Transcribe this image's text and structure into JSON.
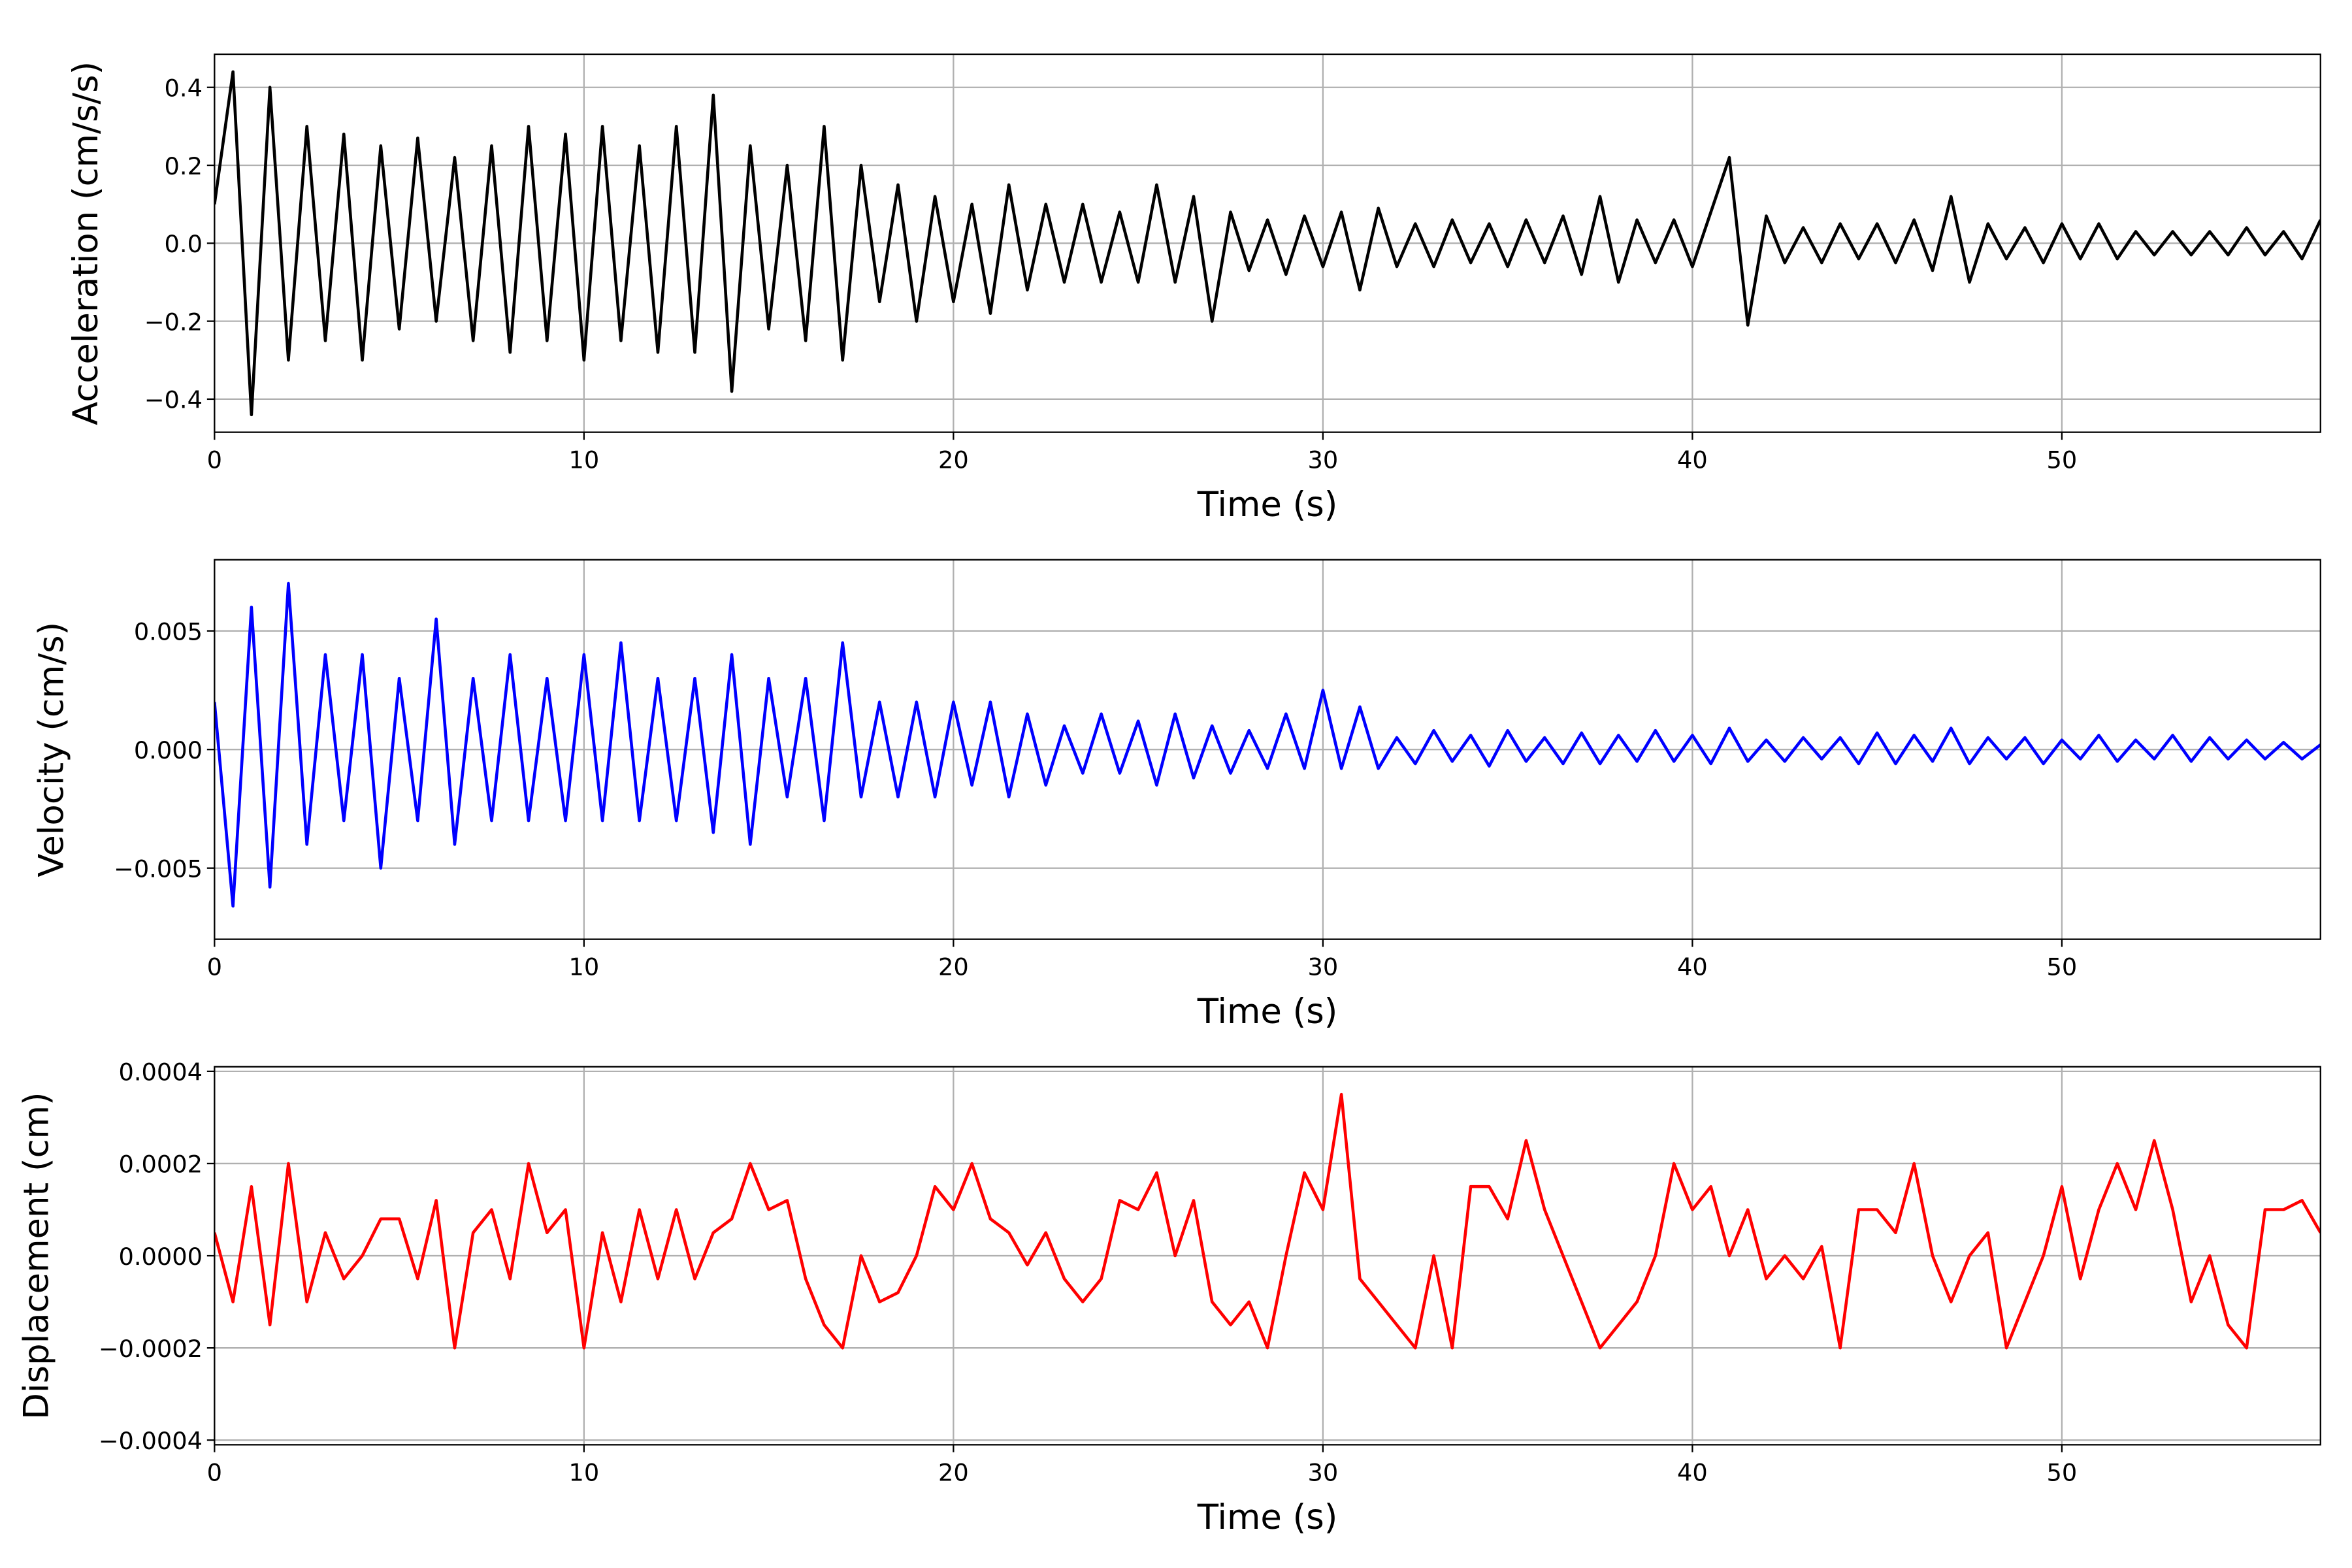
{
  "chart_data": [
    {
      "type": "line",
      "xlabel": "Time (s)",
      "ylabel": "Acceleration (cm/s/s)",
      "color": "#000000",
      "grid": true,
      "xlim": [
        0,
        57
      ],
      "xticks": [
        0,
        10,
        20,
        30,
        40,
        50
      ],
      "ylim": [
        -0.485,
        0.485
      ],
      "yticks": [
        {
          "value": -0.4,
          "label": "−0.4"
        },
        {
          "value": -0.2,
          "label": "−0.2"
        },
        {
          "value": 0,
          "label": "0.0"
        },
        {
          "value": 0.2,
          "label": "0.2"
        },
        {
          "value": 0.4,
          "label": "0.4"
        }
      ],
      "x": [
        0,
        0.5,
        1,
        1.5,
        2,
        2.5,
        3,
        3.5,
        4,
        4.5,
        5,
        5.5,
        6,
        6.5,
        7,
        7.5,
        8,
        8.5,
        9,
        9.5,
        10,
        10.5,
        11,
        11.5,
        12,
        12.5,
        13,
        13.5,
        14,
        14.5,
        15,
        15.5,
        16,
        16.5,
        17,
        17.5,
        18,
        18.5,
        19,
        19.5,
        20,
        20.5,
        21,
        21.5,
        22,
        22.5,
        23,
        23.5,
        24,
        24.5,
        25,
        25.5,
        26,
        26.5,
        27,
        27.5,
        28,
        28.5,
        29,
        29.5,
        30,
        30.5,
        31,
        31.5,
        32,
        32.5,
        33,
        33.5,
        34,
        34.5,
        35,
        35.5,
        36,
        36.5,
        37,
        37.5,
        38,
        38.5,
        39,
        39.5,
        40,
        40.5,
        41,
        41.5,
        42,
        42.5,
        43,
        43.5,
        44,
        44.5,
        45,
        45.5,
        46,
        46.5,
        47,
        47.5,
        48,
        48.5,
        49,
        49.5,
        50,
        50.5,
        51,
        51.5,
        52,
        52.5,
        53,
        53.5,
        54,
        54.5,
        55,
        55.5,
        56,
        56.5,
        57
      ],
      "values": [
        0.1,
        0.44,
        -0.44,
        0.4,
        -0.3,
        0.3,
        -0.25,
        0.28,
        -0.3,
        0.25,
        -0.22,
        0.27,
        -0.2,
        0.22,
        -0.25,
        0.25,
        -0.28,
        0.3,
        -0.25,
        0.28,
        -0.3,
        0.3,
        -0.25,
        0.25,
        -0.28,
        0.3,
        -0.28,
        0.38,
        -0.38,
        0.25,
        -0.22,
        0.2,
        -0.25,
        0.3,
        -0.3,
        0.2,
        -0.15,
        0.15,
        -0.2,
        0.12,
        -0.15,
        0.1,
        -0.18,
        0.15,
        -0.12,
        0.1,
        -0.1,
        0.1,
        -0.1,
        0.08,
        -0.1,
        0.15,
        -0.1,
        0.12,
        -0.2,
        0.08,
        -0.07,
        0.06,
        -0.08,
        0.07,
        -0.06,
        0.08,
        -0.12,
        0.09,
        -0.06,
        0.05,
        -0.06,
        0.06,
        -0.05,
        0.05,
        -0.06,
        0.06,
        -0.05,
        0.07,
        -0.08,
        0.12,
        -0.1,
        0.06,
        -0.05,
        0.06,
        -0.06,
        0.08,
        0.22,
        -0.21,
        0.07,
        -0.05,
        0.04,
        -0.05,
        0.05,
        -0.04,
        0.05,
        -0.05,
        0.06,
        -0.07,
        0.12,
        -0.1,
        0.05,
        -0.04,
        0.04,
        -0.05,
        0.05,
        -0.04,
        0.05,
        -0.04,
        0.03,
        -0.03,
        0.03,
        -0.03,
        0.03,
        -0.03,
        0.04,
        -0.03,
        0.03,
        -0.04,
        0.06
      ]
    },
    {
      "type": "line",
      "xlabel": "Time (s)",
      "ylabel": "Velocity (cm/s)",
      "color": "#0000ff",
      "grid": true,
      "xlim": [
        0,
        57
      ],
      "xticks": [
        0,
        10,
        20,
        30,
        40,
        50
      ],
      "ylim": [
        -0.008,
        0.008
      ],
      "yticks": [
        {
          "value": -0.005,
          "label": "−0.005"
        },
        {
          "value": 0,
          "label": "0.000"
        },
        {
          "value": 0.005,
          "label": "0.005"
        }
      ],
      "x": [
        0,
        0.5,
        1,
        1.5,
        2,
        2.5,
        3,
        3.5,
        4,
        4.5,
        5,
        5.5,
        6,
        6.5,
        7,
        7.5,
        8,
        8.5,
        9,
        9.5,
        10,
        10.5,
        11,
        11.5,
        12,
        12.5,
        13,
        13.5,
        14,
        14.5,
        15,
        15.5,
        16,
        16.5,
        17,
        17.5,
        18,
        18.5,
        19,
        19.5,
        20,
        20.5,
        21,
        21.5,
        22,
        22.5,
        23,
        23.5,
        24,
        24.5,
        25,
        25.5,
        26,
        26.5,
        27,
        27.5,
        28,
        28.5,
        29,
        29.5,
        30,
        30.5,
        31,
        31.5,
        32,
        32.5,
        33,
        33.5,
        34,
        34.5,
        35,
        35.5,
        36,
        36.5,
        37,
        37.5,
        38,
        38.5,
        39,
        39.5,
        40,
        40.5,
        41,
        41.5,
        42,
        42.5,
        43,
        43.5,
        44,
        44.5,
        45,
        45.5,
        46,
        46.5,
        47,
        47.5,
        48,
        48.5,
        49,
        49.5,
        50,
        50.5,
        51,
        51.5,
        52,
        52.5,
        53,
        53.5,
        54,
        54.5,
        55,
        55.5,
        56,
        56.5,
        57
      ],
      "values": [
        0.002,
        -0.0066,
        0.006,
        -0.0058,
        0.007,
        -0.004,
        0.004,
        -0.003,
        0.004,
        -0.005,
        0.003,
        -0.003,
        0.0055,
        -0.004,
        0.003,
        -0.003,
        0.004,
        -0.003,
        0.003,
        -0.003,
        0.004,
        -0.003,
        0.0045,
        -0.003,
        0.003,
        -0.003,
        0.003,
        -0.0035,
        0.004,
        -0.004,
        0.003,
        -0.002,
        0.003,
        -0.003,
        0.0045,
        -0.002,
        0.002,
        -0.002,
        0.002,
        -0.002,
        0.002,
        -0.0015,
        0.002,
        -0.002,
        0.0015,
        -0.0015,
        0.001,
        -0.001,
        0.0015,
        -0.001,
        0.0012,
        -0.0015,
        0.0015,
        -0.0012,
        0.001,
        -0.001,
        0.0008,
        -0.0008,
        0.0015,
        -0.0008,
        0.0025,
        -0.0008,
        0.0018,
        -0.0008,
        0.0005,
        -0.0006,
        0.0008,
        -0.0005,
        0.0006,
        -0.0007,
        0.0008,
        -0.0005,
        0.0005,
        -0.0006,
        0.0007,
        -0.0006,
        0.0006,
        -0.0005,
        0.0008,
        -0.0005,
        0.0006,
        -0.0006,
        0.0009,
        -0.0005,
        0.0004,
        -0.0005,
        0.0005,
        -0.0004,
        0.0005,
        -0.0006,
        0.0007,
        -0.0006,
        0.0006,
        -0.0005,
        0.0009,
        -0.0006,
        0.0005,
        -0.0004,
        0.0005,
        -0.0006,
        0.0004,
        -0.0004,
        0.0006,
        -0.0005,
        0.0004,
        -0.0004,
        0.0006,
        -0.0005,
        0.0005,
        -0.0004,
        0.0004,
        -0.0004,
        0.0003,
        -0.0004,
        0.0002
      ]
    },
    {
      "type": "line",
      "xlabel": "Time (s)",
      "ylabel": "Displacement (cm)",
      "color": "#ff0000",
      "grid": true,
      "xlim": [
        0,
        57
      ],
      "xticks": [
        0,
        10,
        20,
        30,
        40,
        50
      ],
      "ylim": [
        -0.00041,
        0.00041
      ],
      "yticks": [
        {
          "value": -0.0004,
          "label": "−0.0004"
        },
        {
          "value": -0.0002,
          "label": "−0.0002"
        },
        {
          "value": 0,
          "label": "0.0000"
        },
        {
          "value": 0.0002,
          "label": "0.0002"
        },
        {
          "value": 0.0004,
          "label": "0.0004"
        }
      ],
      "x": [
        0,
        0.5,
        1,
        1.5,
        2,
        2.5,
        3,
        3.5,
        4,
        4.5,
        5,
        5.5,
        6,
        6.5,
        7,
        7.5,
        8,
        8.5,
        9,
        9.5,
        10,
        10.5,
        11,
        11.5,
        12,
        12.5,
        13,
        13.5,
        14,
        14.5,
        15,
        15.5,
        16,
        16.5,
        17,
        17.5,
        18,
        18.5,
        19,
        19.5,
        20,
        20.5,
        21,
        21.5,
        22,
        22.5,
        23,
        23.5,
        24,
        24.5,
        25,
        25.5,
        26,
        26.5,
        27,
        27.5,
        28,
        28.5,
        29,
        29.5,
        30,
        30.5,
        31,
        31.5,
        32,
        32.5,
        33,
        33.5,
        34,
        34.5,
        35,
        35.5,
        36,
        36.5,
        37,
        37.5,
        38,
        38.5,
        39,
        39.5,
        40,
        40.5,
        41,
        41.5,
        42,
        42.5,
        43,
        43.5,
        44,
        44.5,
        45,
        45.5,
        46,
        46.5,
        47,
        47.5,
        48,
        48.5,
        49,
        49.5,
        50,
        50.5,
        51,
        51.5,
        52,
        52.5,
        53,
        53.5,
        54,
        54.5,
        55,
        55.5,
        56,
        56.5,
        57
      ],
      "values": [
        5e-05,
        -0.0001,
        0.00015,
        -0.00015,
        0.0002,
        -0.0001,
        5e-05,
        -5e-05,
        0,
        8e-05,
        8e-05,
        -5e-05,
        0.00012,
        -0.0002,
        5e-05,
        0.0001,
        -5e-05,
        0.0002,
        5e-05,
        0.0001,
        -0.0002,
        5e-05,
        -0.0001,
        0.0001,
        -5e-05,
        0.0001,
        -5e-05,
        5e-05,
        8e-05,
        0.0002,
        0.0001,
        0.00012,
        -5e-05,
        -0.00015,
        -0.0002,
        0,
        -0.0001,
        -8e-05,
        0,
        0.00015,
        0.0001,
        0.0002,
        8e-05,
        5e-05,
        -2e-05,
        5e-05,
        -5e-05,
        -0.0001,
        -5e-05,
        0.00012,
        0.0001,
        0.00018,
        0,
        0.00012,
        -0.0001,
        -0.00015,
        -0.0001,
        -0.0002,
        0,
        0.00018,
        0.0001,
        0.00035,
        -5e-05,
        -0.0001,
        -0.00015,
        -0.0002,
        0,
        -0.0002,
        0.00015,
        0.00015,
        8e-05,
        0.00025,
        0.0001,
        0,
        -0.0001,
        -0.0002,
        -0.00015,
        -0.0001,
        0,
        0.0002,
        0.0001,
        0.00015,
        0,
        0.0001,
        -5e-05,
        0,
        -5e-05,
        2e-05,
        -0.0002,
        0.0001,
        0.0001,
        5e-05,
        0.0002,
        0,
        -0.0001,
        0,
        5e-05,
        -0.0002,
        -0.0001,
        0,
        0.00015,
        -5e-05,
        0.0001,
        0.0002,
        0.0001,
        0.00025,
        0.0001,
        -0.0001,
        0,
        -0.00015,
        -0.0002,
        0.0001,
        0.0001,
        0.00012,
        5e-05
      ]
    }
  ]
}
